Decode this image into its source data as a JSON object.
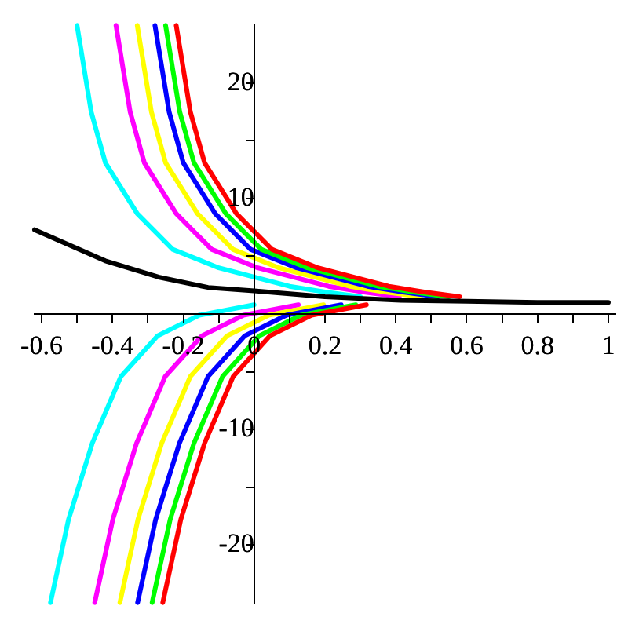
{
  "chart_data": {
    "type": "line",
    "xlim": [
      -0.62,
      1.02
    ],
    "ylim": [
      -25,
      25
    ],
    "xticks": [
      {
        "value": -0.6,
        "label": "-0.6"
      },
      {
        "value": -0.5,
        "label": null
      },
      {
        "value": -0.4,
        "label": "-0.4"
      },
      {
        "value": -0.3,
        "label": null
      },
      {
        "value": -0.2,
        "label": "-0.2"
      },
      {
        "value": -0.1,
        "label": null
      },
      0,
      {
        "value": 0.1,
        "label": null
      },
      0.2,
      {
        "value": 0.3,
        "label": null
      },
      0.4,
      {
        "value": 0.5,
        "label": null
      },
      0.6,
      {
        "value": 0.7,
        "label": null
      },
      0.8,
      {
        "value": 0.9,
        "label": null
      },
      1
    ],
    "yticks": [
      -20,
      {
        "value": -15,
        "label": null
      },
      -10,
      {
        "value": -5,
        "label": null
      },
      {
        "value": 5,
        "label": null
      },
      10,
      {
        "value": 15,
        "label": null
      },
      20
    ],
    "grid": false,
    "legend": false,
    "marker": "none",
    "line_style": "solid",
    "series": [
      {
        "color": "#00ffff",
        "x": [
          -0.5,
          -0.46,
          -0.42,
          -0.33,
          -0.23,
          -0.1,
          0,
          0.1,
          0.2,
          0.3
        ],
        "values": [
          25,
          17.5,
          13.1,
          8.7,
          5.6,
          4.0,
          3.2,
          2.4,
          1.9,
          1.5
        ]
      },
      {
        "color": "#ff00ff",
        "x": [
          -0.39,
          -0.35,
          -0.31,
          -0.22,
          -0.12,
          0.01,
          0.11,
          0.21,
          0.31,
          0.41
        ],
        "values": [
          25,
          17.5,
          13.1,
          8.7,
          5.6,
          4.0,
          3.2,
          2.4,
          1.9,
          1.5
        ]
      },
      {
        "color": "#ffff00",
        "x": [
          -0.33,
          -0.29,
          -0.25,
          -0.16,
          -0.06,
          0.07,
          0.17,
          0.27,
          0.37,
          0.47
        ],
        "values": [
          25,
          17.5,
          13.1,
          8.7,
          5.6,
          4.0,
          3.2,
          2.4,
          1.9,
          1.5
        ]
      },
      {
        "color": "#0000ff",
        "x": [
          -0.28,
          -0.24,
          -0.2,
          -0.11,
          -0.01,
          0.12,
          0.22,
          0.32,
          0.42,
          0.52
        ],
        "values": [
          25,
          17.5,
          13.1,
          8.7,
          5.6,
          4.0,
          3.2,
          2.4,
          1.9,
          1.5
        ]
      },
      {
        "color": "#00ff00",
        "x": [
          -0.25,
          -0.21,
          -0.17,
          -0.08,
          0.02,
          0.15,
          0.25,
          0.35,
          0.45,
          0.55
        ],
        "values": [
          25,
          17.5,
          13.1,
          8.7,
          5.6,
          4.0,
          3.2,
          2.4,
          1.9,
          1.5
        ]
      },
      {
        "color": "#ff0000",
        "x": [
          -0.22,
          -0.18,
          -0.14,
          -0.05,
          0.05,
          0.18,
          0.28,
          0.38,
          0.48,
          0.58
        ],
        "values": [
          25,
          17.5,
          13.1,
          8.7,
          5.6,
          4.0,
          3.2,
          2.4,
          1.9,
          1.5
        ]
      },
      {
        "color": "#00ffff",
        "x": [
          -0.575,
          -0.524,
          -0.457,
          -0.376,
          -0.273,
          -0.155,
          0
        ],
        "values": [
          -25,
          -17.8,
          -11.2,
          -5.4,
          -1.9,
          -0.1,
          0.8
        ]
      },
      {
        "color": "#ff00ff",
        "x": [
          -0.45,
          -0.399,
          -0.332,
          -0.251,
          -0.148,
          -0.03,
          0.125
        ],
        "values": [
          -25,
          -17.8,
          -11.2,
          -5.4,
          -1.9,
          -0.1,
          0.8
        ]
      },
      {
        "color": "#ffff00",
        "x": [
          -0.379,
          -0.328,
          -0.261,
          -0.18,
          -0.077,
          0.041,
          0.196
        ],
        "values": [
          -25,
          -17.8,
          -11.2,
          -5.4,
          -1.9,
          -0.1,
          0.8
        ]
      },
      {
        "color": "#0000ff",
        "x": [
          -0.329,
          -0.278,
          -0.211,
          -0.13,
          -0.027,
          0.091,
          0.246
        ],
        "values": [
          -25,
          -17.8,
          -11.2,
          -5.4,
          -1.9,
          -0.1,
          0.8
        ]
      },
      {
        "color": "#00ff00",
        "x": [
          -0.288,
          -0.237,
          -0.17,
          -0.089,
          0.014,
          0.132,
          0.287
        ],
        "values": [
          -25,
          -17.8,
          -11.2,
          -5.4,
          -1.9,
          -0.1,
          0.8
        ]
      },
      {
        "color": "#ff0000",
        "x": [
          -0.258,
          -0.207,
          -0.14,
          -0.059,
          0.044,
          0.162,
          0.317
        ],
        "values": [
          -25,
          -17.8,
          -11.2,
          -5.4,
          -1.9,
          -0.1,
          0.8
        ]
      },
      {
        "color": "#000000",
        "x": [
          -0.62,
          -0.42,
          -0.27,
          -0.13,
          0,
          0.2,
          0.4,
          0.6,
          0.8,
          1
        ],
        "values": [
          7.3,
          4.6,
          3.2,
          2.3,
          2.0,
          1.5,
          1.2,
          1.1,
          1.0,
          1.0
        ]
      }
    ]
  }
}
